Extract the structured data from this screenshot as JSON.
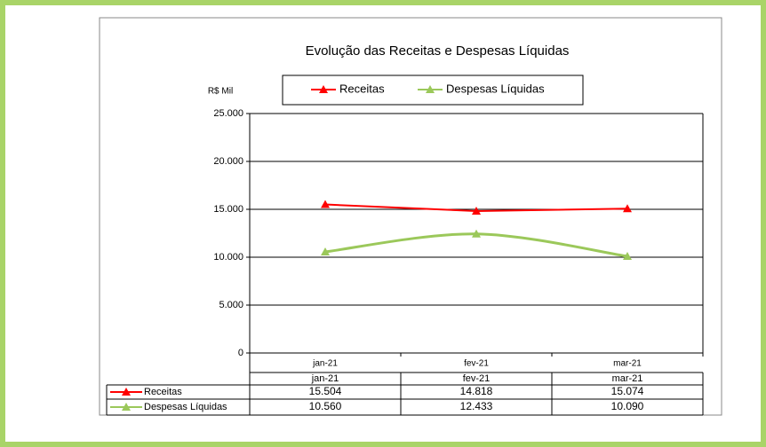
{
  "chart_data": {
    "type": "line",
    "title": "Evolução das Receitas e Despesas Líquidas",
    "y_label": "R$ Mil",
    "categories": [
      "jan-21",
      "fev-21",
      "mar-21"
    ],
    "series": [
      {
        "name": "Receitas",
        "color": "#ff0000",
        "values": [
          15504,
          14818,
          15074
        ],
        "value_labels": [
          "15.504",
          "14.818",
          "15.074"
        ],
        "smooth": false
      },
      {
        "name": "Despesas Líquidas",
        "color": "#9bc85a",
        "values": [
          10560,
          12433,
          10090
        ],
        "value_labels": [
          "10.560",
          "12.433",
          "10.090"
        ],
        "smooth": true
      }
    ],
    "ylim": [
      0,
      25000
    ],
    "yticks": [
      0,
      {
        "value": 5000,
        "label": "5.000"
      },
      {
        "value": 10000,
        "label": "10.000"
      },
      {
        "value": 15000,
        "label": "15.000"
      },
      {
        "value": 20000,
        "label": "20.000"
      },
      {
        "value": 25000,
        "label": "25.000"
      }
    ],
    "grid": true,
    "legend": "top"
  }
}
